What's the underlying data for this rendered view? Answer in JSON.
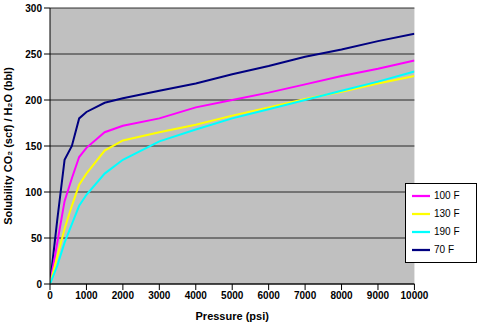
{
  "chart_data": {
    "type": "line",
    "x_label": "Pressure (psi)",
    "y_label": "Solubility CO₂ (scf) / H₂O (bbl)",
    "x": [
      0,
      200,
      400,
      600,
      800,
      1000,
      1500,
      2000,
      3000,
      4000,
      5000,
      6000,
      7000,
      8000,
      9000,
      10000
    ],
    "series": [
      {
        "name": "70 F",
        "color": "#000080",
        "values": [
          0,
          70,
          135,
          150,
          180,
          187,
          197,
          202,
          210,
          218,
          228,
          237,
          247,
          255,
          264,
          272
        ]
      },
      {
        "name": "100 F",
        "color": "#ff00ff",
        "values": [
          0,
          45,
          90,
          115,
          138,
          148,
          165,
          172,
          180,
          192,
          200,
          208,
          217,
          226,
          234,
          243
        ]
      },
      {
        "name": "130 F",
        "color": "#ffff00",
        "values": [
          0,
          30,
          60,
          85,
          108,
          120,
          145,
          156,
          165,
          173,
          183,
          192,
          201,
          209,
          218,
          226
        ]
      },
      {
        "name": "190 F",
        "color": "#00ffff",
        "values": [
          0,
          20,
          45,
          65,
          85,
          97,
          120,
          135,
          155,
          168,
          180,
          190,
          200,
          210,
          220,
          231
        ]
      }
    ],
    "xlim": [
      0,
      10000
    ],
    "xticks": [
      0,
      1000,
      2000,
      3000,
      4000,
      5000,
      6000,
      7000,
      8000,
      9000,
      10000
    ],
    "ylim": [
      0,
      300
    ],
    "yticks": [
      0,
      50,
      100,
      150,
      200,
      250,
      300
    ],
    "grid": true,
    "legend": "right"
  }
}
